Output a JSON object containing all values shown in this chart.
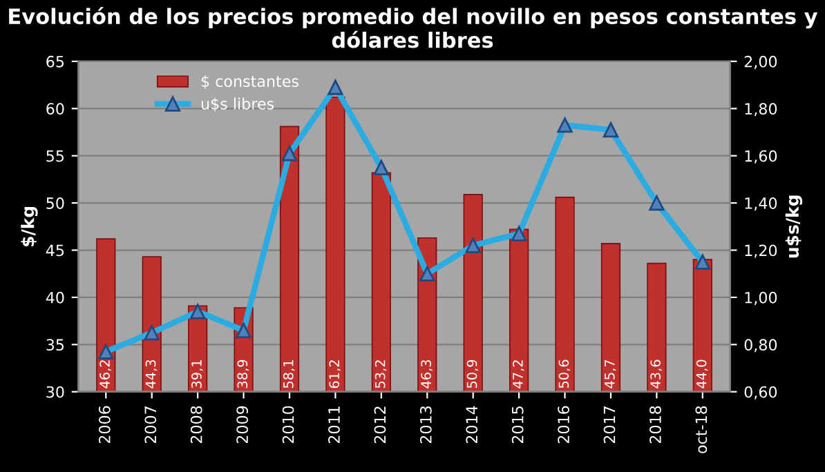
{
  "chart_data": {
    "type": "bar",
    "title": "Evolución de los precios promedio del novillo en pesos constantes y dólares libres",
    "ylabel": "$/kg",
    "y2label": "u$s/kg",
    "categories": [
      "2006",
      "2007",
      "2008",
      "2009",
      "2010",
      "2011",
      "2012",
      "2013",
      "2014",
      "2015",
      "2016",
      "2017",
      "2018",
      "oct-18"
    ],
    "series": [
      {
        "name": "$ constantes",
        "color": "#c0302c",
        "values": [
          46.2,
          44.3,
          39.1,
          38.9,
          58.1,
          61.2,
          53.2,
          46.3,
          50.9,
          47.2,
          50.6,
          45.7,
          43.6,
          44.0
        ],
        "value_labels": [
          "46,2",
          "44,3",
          "39,1",
          "38,9",
          "58,1",
          "61,2",
          "53,2",
          "46,3",
          "50,9",
          "47,2",
          "50,6",
          "45,7",
          "43,6",
          "44,0"
        ]
      },
      {
        "name": "u$s libres",
        "type": "line",
        "axis": "y2",
        "color": "#2aace2",
        "marker": "triangle",
        "values": [
          0.77,
          0.85,
          0.94,
          0.86,
          1.61,
          1.89,
          1.55,
          1.1,
          1.22,
          1.27,
          1.73,
          1.71,
          1.4,
          1.15
        ]
      }
    ],
    "ylim": [
      30,
      65
    ],
    "yticks": [
      30,
      35,
      40,
      45,
      50,
      55,
      60,
      65
    ],
    "y2lim": [
      0.6,
      2.0
    ],
    "y2ticks": [
      {
        "value": 0.6,
        "label": "0,60"
      },
      {
        "value": 0.8,
        "label": "0,80"
      },
      {
        "value": 1.0,
        "label": "1,00"
      },
      {
        "value": 1.2,
        "label": "1,20"
      },
      {
        "value": 1.4,
        "label": "1,40"
      },
      {
        "value": 1.6,
        "label": "1,60"
      },
      {
        "value": 1.8,
        "label": "1,80"
      },
      {
        "value": 2.0,
        "label": "2,00"
      }
    ],
    "grid": "y",
    "legend": "top left"
  }
}
